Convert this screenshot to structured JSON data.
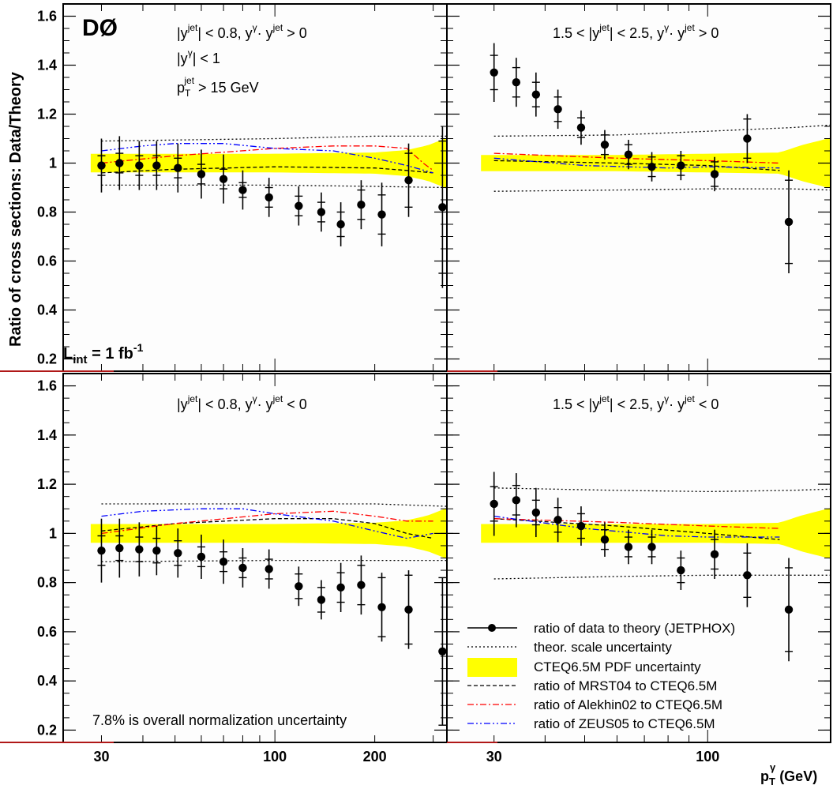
{
  "figure": {
    "experiment_logo": "DØ",
    "luminosity": {
      "L": "L",
      "sub": "int",
      "eq": " = 1 fb",
      "sup": "-1"
    },
    "y_axis_label": "Ratio of cross sections: Data/Theory",
    "x_axis_label": {
      "base": "p",
      "sub": "T",
      "sup": "γ",
      "unit": " (GeV)"
    },
    "normalization_note": "7.8% is overall normalization uncertainty",
    "cuts_common": [
      "|y^{jet}| < 0.8,  y^{γ}· y^{jet} > 0",
      "|y^{γ}| < 1",
      "p_{T}^{jet} > 15 GeV"
    ],
    "legend": [
      {
        "key": "data",
        "label": "ratio of data to theory (JETPHOX)"
      },
      {
        "key": "scale",
        "label": "theor. scale uncertainty"
      },
      {
        "key": "pdf",
        "label": "CTEQ6.5M PDF uncertainty"
      },
      {
        "key": "mrst",
        "label": "ratio of MRST04 to CTEQ6.5M"
      },
      {
        "key": "alekhin",
        "label": "ratio of Alekhin02 to CTEQ6.5M"
      },
      {
        "key": "zeus",
        "label": "ratio of ZEUS05 to CTEQ6.5M"
      }
    ],
    "colors": {
      "pdf_band": "#ffff00",
      "mrst": "#000000",
      "alekhin": "#ff0000",
      "zeus": "#0000ff",
      "data": "#000000"
    }
  },
  "chart_data": [
    {
      "type": "scatter",
      "panel": "top-left",
      "title": "|y^{jet}| < 0.8,  y^{γ}· y^{jet} > 0",
      "x_scale": "log",
      "xlim": [
        23,
        330
      ],
      "ylim": [
        0.15,
        1.65
      ],
      "x_ticks": [
        30,
        100,
        200
      ],
      "y_ticks": [
        0.2,
        0.4,
        0.6,
        0.8,
        1.0,
        1.2,
        1.4,
        1.6
      ],
      "data": {
        "x": [
          30,
          34,
          39,
          44,
          51,
          60,
          70,
          80,
          96,
          118,
          138,
          158,
          182,
          210,
          253,
          320
        ],
        "y": [
          0.99,
          1.0,
          0.99,
          0.99,
          0.98,
          0.955,
          0.935,
          0.89,
          0.86,
          0.825,
          0.8,
          0.75,
          0.83,
          0.79,
          0.93,
          0.82
        ],
        "err_stat": [
          0.04,
          0.04,
          0.04,
          0.04,
          0.04,
          0.04,
          0.04,
          0.03,
          0.04,
          0.04,
          0.04,
          0.05,
          0.06,
          0.08,
          0.11,
          0.27
        ],
        "err_tot": [
          0.11,
          0.11,
          0.1,
          0.1,
          0.1,
          0.1,
          0.1,
          0.08,
          0.08,
          0.08,
          0.08,
          0.09,
          0.1,
          0.13,
          0.15,
          0.33
        ]
      },
      "scale_upper": {
        "x": [
          30,
          100,
          200,
          330
        ],
        "y": [
          1.09,
          1.1,
          1.11,
          1.11
        ]
      },
      "scale_lower": {
        "x": [
          30,
          100,
          200,
          330
        ],
        "y": [
          0.91,
          0.91,
          0.905,
          0.9
        ]
      },
      "pdf_band": {
        "x": [
          30,
          50,
          100,
          200,
          250,
          290,
          330
        ],
        "half_width": [
          0.035,
          0.035,
          0.035,
          0.04,
          0.05,
          0.07,
          0.1
        ]
      },
      "mrst": {
        "x": [
          30,
          50,
          100,
          200,
          250,
          300
        ],
        "y": [
          0.96,
          0.975,
          0.985,
          0.98,
          0.97,
          0.96
        ]
      },
      "alekhin": {
        "x": [
          30,
          50,
          100,
          150,
          200,
          250,
          280,
          300
        ],
        "y": [
          1.0,
          1.03,
          1.06,
          1.07,
          1.07,
          1.06,
          1.0,
          0.97
        ]
      },
      "zeus": {
        "x": [
          30,
          40,
          50,
          70,
          100,
          150,
          200,
          250,
          300
        ],
        "y": [
          1.05,
          1.07,
          1.08,
          1.08,
          1.06,
          1.05,
          1.02,
          0.99,
          0.96
        ]
      }
    },
    {
      "type": "scatter",
      "panel": "top-right",
      "title": "1.5 < |y^{jet}| < 2.5,  y^{γ}· y^{jet} > 0",
      "x_scale": "log",
      "xlim": [
        23,
        200
      ],
      "ylim": [
        0.15,
        1.65
      ],
      "x_ticks": [
        30,
        100
      ],
      "y_ticks": [
        0.2,
        0.4,
        0.6,
        0.8,
        1.0,
        1.2,
        1.4,
        1.6
      ],
      "data": {
        "x": [
          30,
          34,
          38,
          43,
          49,
          56,
          64,
          73,
          86,
          104,
          125,
          158
        ],
        "y": [
          1.37,
          1.33,
          1.28,
          1.22,
          1.145,
          1.075,
          1.035,
          0.985,
          0.99,
          0.955,
          1.1,
          0.76
        ],
        "err_stat": [
          0.07,
          0.06,
          0.05,
          0.05,
          0.04,
          0.04,
          0.04,
          0.04,
          0.04,
          0.05,
          0.08,
          0.17
        ],
        "err_tot": [
          0.12,
          0.1,
          0.09,
          0.08,
          0.07,
          0.06,
          0.06,
          0.06,
          0.06,
          0.07,
          0.1,
          0.21
        ]
      },
      "scale_upper": {
        "x": [
          30,
          60,
          100,
          160,
          200
        ],
        "y": [
          1.11,
          1.115,
          1.13,
          1.145,
          1.155
        ]
      },
      "scale_lower": {
        "x": [
          30,
          60,
          100,
          160,
          200
        ],
        "y": [
          0.885,
          0.89,
          0.895,
          0.895,
          0.89
        ]
      },
      "pdf_band": {
        "x": [
          30,
          60,
          100,
          150,
          170,
          200
        ],
        "half_width": [
          0.03,
          0.03,
          0.035,
          0.04,
          0.07,
          0.1
        ]
      },
      "mrst": {
        "x": [
          30,
          60,
          100,
          150
        ],
        "y": [
          1.01,
          1.0,
          0.99,
          0.97
        ]
      },
      "alekhin": {
        "x": [
          30,
          60,
          100,
          150
        ],
        "y": [
          1.04,
          1.02,
          1.01,
          1.0
        ]
      },
      "zeus": {
        "x": [
          30,
          50,
          80,
          100,
          150
        ],
        "y": [
          1.02,
          0.99,
          0.98,
          0.985,
          0.98
        ]
      }
    },
    {
      "type": "scatter",
      "panel": "bottom-left",
      "title": "|y^{jet}| < 0.8,  y^{γ}· y^{jet} < 0",
      "x_scale": "log",
      "xlim": [
        23,
        330
      ],
      "ylim": [
        0.15,
        1.65
      ],
      "x_ticks": [
        30,
        100,
        200
      ],
      "y_ticks": [
        0.2,
        0.4,
        0.6,
        0.8,
        1.0,
        1.2,
        1.4,
        1.6
      ],
      "data": {
        "x": [
          30,
          34,
          39,
          44,
          51,
          60,
          70,
          80,
          96,
          118,
          138,
          158,
          182,
          210,
          253,
          320
        ],
        "y": [
          0.93,
          0.94,
          0.935,
          0.93,
          0.92,
          0.905,
          0.885,
          0.86,
          0.855,
          0.785,
          0.73,
          0.78,
          0.79,
          0.7,
          0.69,
          0.52
        ],
        "err_stat": [
          0.06,
          0.05,
          0.05,
          0.05,
          0.05,
          0.04,
          0.04,
          0.04,
          0.04,
          0.05,
          0.05,
          0.06,
          0.08,
          0.12,
          0.14,
          0.3
        ],
        "err_tot": [
          0.13,
          0.12,
          0.11,
          0.1,
          0.1,
          0.09,
          0.09,
          0.08,
          0.08,
          0.08,
          0.08,
          0.1,
          0.12,
          0.14,
          0.16,
          0.3
        ]
      },
      "scale_upper": {
        "x": [
          30,
          100,
          200,
          330
        ],
        "y": [
          1.12,
          1.12,
          1.12,
          1.11
        ]
      },
      "scale_lower": {
        "x": [
          30,
          100,
          200,
          330
        ],
        "y": [
          0.885,
          0.89,
          0.89,
          0.89
        ]
      },
      "pdf_band": {
        "x": [
          30,
          50,
          100,
          200,
          250,
          290,
          330
        ],
        "half_width": [
          0.035,
          0.035,
          0.035,
          0.04,
          0.05,
          0.07,
          0.1
        ]
      },
      "mrst": {
        "x": [
          30,
          50,
          100,
          150,
          200,
          250,
          300
        ],
        "y": [
          1.01,
          1.04,
          1.06,
          1.06,
          1.04,
          1.0,
          0.98
        ]
      },
      "alekhin": {
        "x": [
          30,
          50,
          100,
          150,
          200,
          250,
          300
        ],
        "y": [
          1.0,
          1.04,
          1.08,
          1.09,
          1.07,
          1.05,
          1.05
        ]
      },
      "zeus": {
        "x": [
          30,
          40,
          60,
          80,
          100,
          150,
          200,
          250,
          300
        ],
        "y": [
          1.07,
          1.09,
          1.1,
          1.1,
          1.08,
          1.05,
          1.01,
          0.98,
          1.0
        ]
      }
    },
    {
      "type": "scatter",
      "panel": "bottom-right",
      "title": "1.5 < |y^{jet}| < 2.5,  y^{γ}· y^{jet} < 0",
      "x_scale": "log",
      "xlim": [
        23,
        200
      ],
      "ylim": [
        0.15,
        1.65
      ],
      "x_ticks": [
        30,
        100
      ],
      "y_ticks": [
        0.2,
        0.4,
        0.6,
        0.8,
        1.0,
        1.2,
        1.4,
        1.6
      ],
      "data": {
        "x": [
          30,
          34,
          38,
          43,
          49,
          56,
          64,
          73,
          86,
          104,
          125,
          158
        ],
        "y": [
          1.12,
          1.135,
          1.085,
          1.055,
          1.03,
          0.975,
          0.945,
          0.945,
          0.85,
          0.915,
          0.83,
          0.69
        ],
        "err_stat": [
          0.07,
          0.06,
          0.05,
          0.05,
          0.05,
          0.04,
          0.04,
          0.04,
          0.05,
          0.06,
          0.09,
          0.17
        ],
        "err_tot": [
          0.13,
          0.11,
          0.1,
          0.09,
          0.08,
          0.07,
          0.07,
          0.07,
          0.08,
          0.1,
          0.13,
          0.21
        ]
      },
      "scale_upper": {
        "x": [
          30,
          60,
          100,
          160,
          200
        ],
        "y": [
          1.185,
          1.175,
          1.17,
          1.175,
          1.18
        ]
      },
      "scale_lower": {
        "x": [
          30,
          60,
          100,
          160,
          200
        ],
        "y": [
          0.815,
          0.825,
          0.83,
          0.83,
          0.83
        ]
      },
      "pdf_band": {
        "x": [
          30,
          60,
          100,
          150,
          170,
          200
        ],
        "half_width": [
          0.035,
          0.035,
          0.035,
          0.04,
          0.07,
          0.1
        ]
      },
      "mrst": {
        "x": [
          30,
          60,
          100,
          150
        ],
        "y": [
          1.06,
          1.03,
          1.0,
          0.975
        ]
      },
      "alekhin": {
        "x": [
          30,
          60,
          100,
          150
        ],
        "y": [
          1.06,
          1.045,
          1.03,
          1.02
        ]
      },
      "zeus": {
        "x": [
          30,
          50,
          80,
          100,
          150
        ],
        "y": [
          1.07,
          1.02,
          0.99,
          0.985,
          0.985
        ]
      }
    }
  ]
}
